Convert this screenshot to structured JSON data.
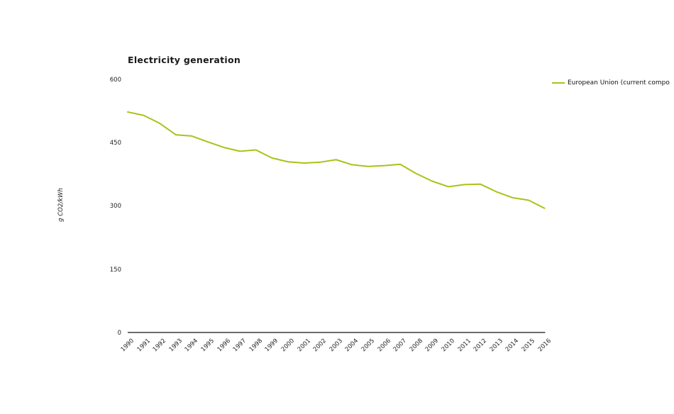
{
  "chart_data": {
    "type": "line",
    "title": "Electricity generation",
    "xlabel": "",
    "ylabel": "g CO2/kWh",
    "ylim": [
      0,
      600
    ],
    "yticks": [
      0,
      150,
      300,
      450,
      600
    ],
    "grid": false,
    "legend_position": "top-right",
    "categories": [
      "1990",
      "1991",
      "1992",
      "1993",
      "1994",
      "1995",
      "1996",
      "1997",
      "1998",
      "1999",
      "2000",
      "2001",
      "2002",
      "2003",
      "2004",
      "2005",
      "2006",
      "2007",
      "2008",
      "2009",
      "2010",
      "2011",
      "2012",
      "2013",
      "2014",
      "2015",
      "2016"
    ],
    "series": [
      {
        "name": "European Union (current compo",
        "color": "#acc118",
        "values": [
          524,
          516,
          497,
          470,
          467,
          453,
          440,
          431,
          434,
          415,
          406,
          403,
          405,
          411,
          399,
          395,
          397,
          400,
          378,
          360,
          347,
          352,
          353,
          335,
          321,
          315,
          296
        ]
      }
    ]
  },
  "colors": {
    "axis_line": "#3c3c3c",
    "tick_text": "#222222",
    "title_text": "#1a1a1a"
  }
}
